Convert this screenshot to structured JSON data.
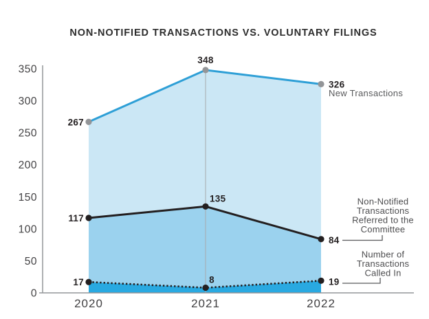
{
  "title": "NON-NOTIFIED TRANSACTIONS VS. VOLUNTARY FILINGS",
  "colors": {
    "new_transactions_line": "#2e9fd6",
    "new_transactions_fill": "#cbe7f5",
    "new_transactions_point": "#939598",
    "referred_line": "#231f20",
    "referred_fill": "#9bd2ee",
    "called_in_line": "#231f20",
    "called_in_fill": "#29a9e1",
    "axis": "#939598",
    "gridline": "#a7a9ac",
    "tick_text": "#414042",
    "annotation_text": "#4d4d4f",
    "connector": "#58595b",
    "data_label": "#231f20"
  },
  "chart_data": {
    "type": "area",
    "title": "NON-NOTIFIED TRANSACTIONS VS. VOLUNTARY FILINGS",
    "categories": [
      "2020",
      "2021",
      "2022"
    ],
    "series": [
      {
        "name": "New Transactions",
        "values": [
          267,
          348,
          326
        ],
        "line_style": "solid",
        "line_color": "#2e9fd6",
        "fill_color": "#cbe7f5",
        "point_color": "#939598"
      },
      {
        "name": "Non-Notified Transactions Referred to the Committee",
        "values": [
          117,
          135,
          84
        ],
        "line_style": "solid",
        "line_color": "#231f20",
        "fill_color": "#9bd2ee",
        "point_color": "#231f20"
      },
      {
        "name": "Number of Transactions Called In",
        "values": [
          17,
          8,
          19
        ],
        "line_style": "dotted",
        "line_color": "#231f20",
        "fill_color": "#29a9e1",
        "point_color": "#231f20"
      }
    ],
    "xlabel": "",
    "ylabel": "",
    "ylim": [
      0,
      350
    ],
    "yticks": [
      0,
      50,
      100,
      150,
      200,
      250,
      300,
      350
    ],
    "grid": "single vertical gridline at 2021",
    "legend_position": "right-side annotations"
  },
  "annotations": {
    "new_transactions_label": "New Transactions",
    "referred_label_lines": [
      "Non-Notified",
      "Transactions",
      "Referred to the",
      "Committee"
    ],
    "called_in_label_lines": [
      "Number of",
      "Transactions",
      "Called In"
    ]
  }
}
